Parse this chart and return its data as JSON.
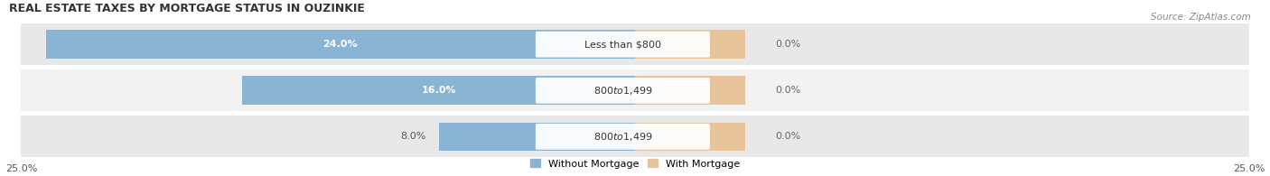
{
  "title": "REAL ESTATE TAXES BY MORTGAGE STATUS IN OUZINKIE",
  "source": "Source: ZipAtlas.com",
  "categories": [
    "Less than $800",
    "$800 to $1,499",
    "$800 to $1,499"
  ],
  "without_mortgage": [
    24.0,
    16.0,
    8.0
  ],
  "with_mortgage": [
    0.0,
    0.0,
    0.0
  ],
  "with_mortgage_display": [
    4.5,
    4.5,
    4.5
  ],
  "xlim_left": -25.0,
  "xlim_right": 25.0,
  "bar_color_without": "#8ab4d4",
  "bar_color_with": "#e8c49a",
  "row_bg_even": "#e8e8e8",
  "row_bg_odd": "#f2f2f2",
  "pill_bg": "#ffffff",
  "label_color_white": "#ffffff",
  "label_color_dark": "#555555",
  "label_color_right": "#666666",
  "legend_label_without": "Without Mortgage",
  "legend_label_with": "With Mortgage",
  "title_fontsize": 9,
  "bar_label_fontsize": 8,
  "category_fontsize": 8,
  "axis_label_fontsize": 8,
  "source_fontsize": 7.5
}
